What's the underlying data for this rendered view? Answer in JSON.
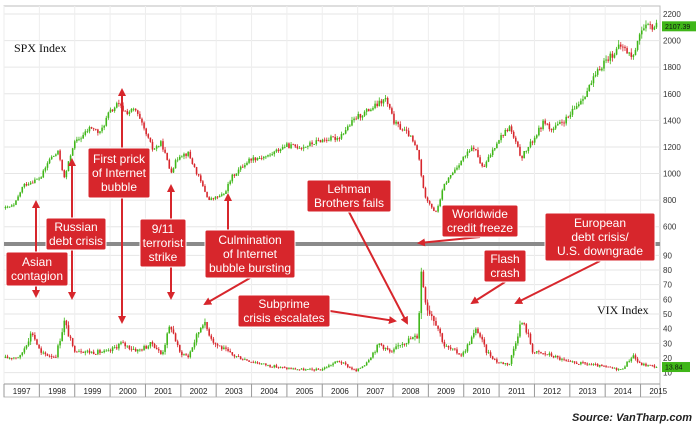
{
  "chart_data": [
    {
      "type": "candlestick",
      "panel": "top",
      "label": "SPX Index",
      "ylim": [
        500,
        2200
      ],
      "yticks": [
        600,
        800,
        1000,
        1200,
        1400,
        1600,
        1800,
        2000,
        2200
      ],
      "last_value_label": "2107.39",
      "last_value": 2107.39,
      "colors": {
        "up": "#3fb618",
        "down": "#d7262c"
      },
      "points": [
        [
          "1997-01",
          740
        ],
        [
          "1997-04",
          760
        ],
        [
          "1997-07",
          910
        ],
        [
          "1997-10",
          940
        ],
        [
          "1998-01",
          970
        ],
        [
          "1998-04",
          1110
        ],
        [
          "1998-07",
          1160
        ],
        [
          "1998-09",
          960
        ],
        [
          "1998-12",
          1220
        ],
        [
          "1999-03",
          1280
        ],
        [
          "1999-06",
          1350
        ],
        [
          "1999-09",
          1300
        ],
        [
          "1999-12",
          1450
        ],
        [
          "2000-03",
          1520
        ],
        [
          "2000-06",
          1460
        ],
        [
          "2000-09",
          1480
        ],
        [
          "2000-12",
          1330
        ],
        [
          "2001-03",
          1180
        ],
        [
          "2001-06",
          1230
        ],
        [
          "2001-09",
          1010
        ],
        [
          "2001-12",
          1140
        ],
        [
          "2002-03",
          1150
        ],
        [
          "2002-06",
          1000
        ],
        [
          "2002-10",
          800
        ],
        [
          "2003-03",
          840
        ],
        [
          "2003-06",
          980
        ],
        [
          "2003-12",
          1110
        ],
        [
          "2004-06",
          1130
        ],
        [
          "2004-12",
          1210
        ],
        [
          "2005-06",
          1200
        ],
        [
          "2005-12",
          1250
        ],
        [
          "2006-06",
          1270
        ],
        [
          "2006-12",
          1420
        ],
        [
          "2007-06",
          1500
        ],
        [
          "2007-10",
          1560
        ],
        [
          "2008-01",
          1380
        ],
        [
          "2008-06",
          1290
        ],
        [
          "2008-09",
          1160
        ],
        [
          "2008-11",
          850
        ],
        [
          "2009-03",
          700
        ],
        [
          "2009-06",
          920
        ],
        [
          "2009-12",
          1110
        ],
        [
          "2010-04",
          1200
        ],
        [
          "2010-07",
          1030
        ],
        [
          "2010-12",
          1250
        ],
        [
          "2011-04",
          1350
        ],
        [
          "2011-08",
          1120
        ],
        [
          "2011-12",
          1250
        ],
        [
          "2012-04",
          1400
        ],
        [
          "2012-06",
          1320
        ],
        [
          "2012-12",
          1420
        ],
        [
          "2013-06",
          1610
        ],
        [
          "2013-12",
          1840
        ],
        [
          "2014-06",
          1960
        ],
        [
          "2014-10",
          1870
        ],
        [
          "2014-12",
          2060
        ],
        [
          "2015-03",
          2100
        ],
        [
          "2015-06",
          2110
        ]
      ]
    },
    {
      "type": "candlestick",
      "panel": "bottom",
      "label": "VIX Index",
      "ylim": [
        5,
        95
      ],
      "yticks": [
        10,
        20,
        30,
        40,
        50,
        60,
        70,
        80,
        90
      ],
      "last_value_label": "13.84",
      "last_value": 13.84,
      "colors": {
        "up": "#3fb618",
        "down": "#d7262c"
      },
      "points": [
        [
          "1997-01",
          20
        ],
        [
          "1997-06",
          21
        ],
        [
          "1997-10",
          38
        ],
        [
          "1998-01",
          23
        ],
        [
          "1998-06",
          21
        ],
        [
          "1998-09",
          45
        ],
        [
          "1998-12",
          26
        ],
        [
          "1999-06",
          24
        ],
        [
          "1999-12",
          24
        ],
        [
          "2000-04",
          30
        ],
        [
          "2000-10",
          25
        ],
        [
          "2001-03",
          30
        ],
        [
          "2001-06",
          22
        ],
        [
          "2001-09",
          43
        ],
        [
          "2001-12",
          24
        ],
        [
          "2002-03",
          21
        ],
        [
          "2002-08",
          45
        ],
        [
          "2002-12",
          30
        ],
        [
          "2003-06",
          22
        ],
        [
          "2003-12",
          18
        ],
        [
          "2004-06",
          15
        ],
        [
          "2004-12",
          13
        ],
        [
          "2005-06",
          12
        ],
        [
          "2005-12",
          12
        ],
        [
          "2006-06",
          18
        ],
        [
          "2006-12",
          11
        ],
        [
          "2007-03",
          16
        ],
        [
          "2007-08",
          30
        ],
        [
          "2007-12",
          23
        ],
        [
          "2008-03",
          30
        ],
        [
          "2008-09",
          35
        ],
        [
          "2008-10",
          80
        ],
        [
          "2008-12",
          55
        ],
        [
          "2009-03",
          45
        ],
        [
          "2009-06",
          28
        ],
        [
          "2009-12",
          22
        ],
        [
          "2010-05",
          40
        ],
        [
          "2010-08",
          25
        ],
        [
          "2010-12",
          17
        ],
        [
          "2011-04",
          16
        ],
        [
          "2011-08",
          45
        ],
        [
          "2011-10",
          38
        ],
        [
          "2011-12",
          24
        ],
        [
          "2012-06",
          22
        ],
        [
          "2012-12",
          17
        ],
        [
          "2013-06",
          16
        ],
        [
          "2013-12",
          14
        ],
        [
          "2014-06",
          12
        ],
        [
          "2014-10",
          22
        ],
        [
          "2014-12",
          16
        ],
        [
          "2015-03",
          15
        ],
        [
          "2015-06",
          14
        ]
      ]
    }
  ],
  "x_axis": {
    "years": [
      "1997",
      "1998",
      "1999",
      "2000",
      "2001",
      "2002",
      "2003",
      "2004",
      "2005",
      "2006",
      "2007",
      "2008",
      "2009",
      "2010",
      "2011",
      "2012",
      "2013",
      "2014",
      "2015"
    ]
  },
  "annotations": [
    {
      "id": "asian",
      "lines": [
        "Asian",
        "contagion"
      ],
      "date": "1997-10"
    },
    {
      "id": "russian",
      "lines": [
        "Russian",
        "debt crisis"
      ],
      "date": "1998-09"
    },
    {
      "id": "internet",
      "lines": [
        "First prick",
        "of Internet",
        "bubble"
      ],
      "date": "2000-03"
    },
    {
      "id": "sept11",
      "lines": [
        "9/11",
        "terrorist",
        "strike"
      ],
      "date": "2001-09"
    },
    {
      "id": "culmination",
      "lines": [
        "Culmination",
        "of Internet",
        "bubble bursting"
      ],
      "date": "2002-10"
    },
    {
      "id": "subprime",
      "lines": [
        "Subprime",
        "crisis escalates"
      ],
      "date": "2007-08"
    },
    {
      "id": "lehman",
      "lines": [
        "Lehman",
        "Brothers fails"
      ],
      "date": "2008-09"
    },
    {
      "id": "credit",
      "lines": [
        "Worldwide",
        "credit freeze"
      ],
      "date": "2008-10"
    },
    {
      "id": "flash",
      "lines": [
        "Flash",
        "crash"
      ],
      "date": "2010-05"
    },
    {
      "id": "european",
      "lines": [
        "European",
        "debt crisis/",
        "U.S. downgrade"
      ],
      "date": "2011-08"
    }
  ],
  "source": "Source: VanTharp.com"
}
